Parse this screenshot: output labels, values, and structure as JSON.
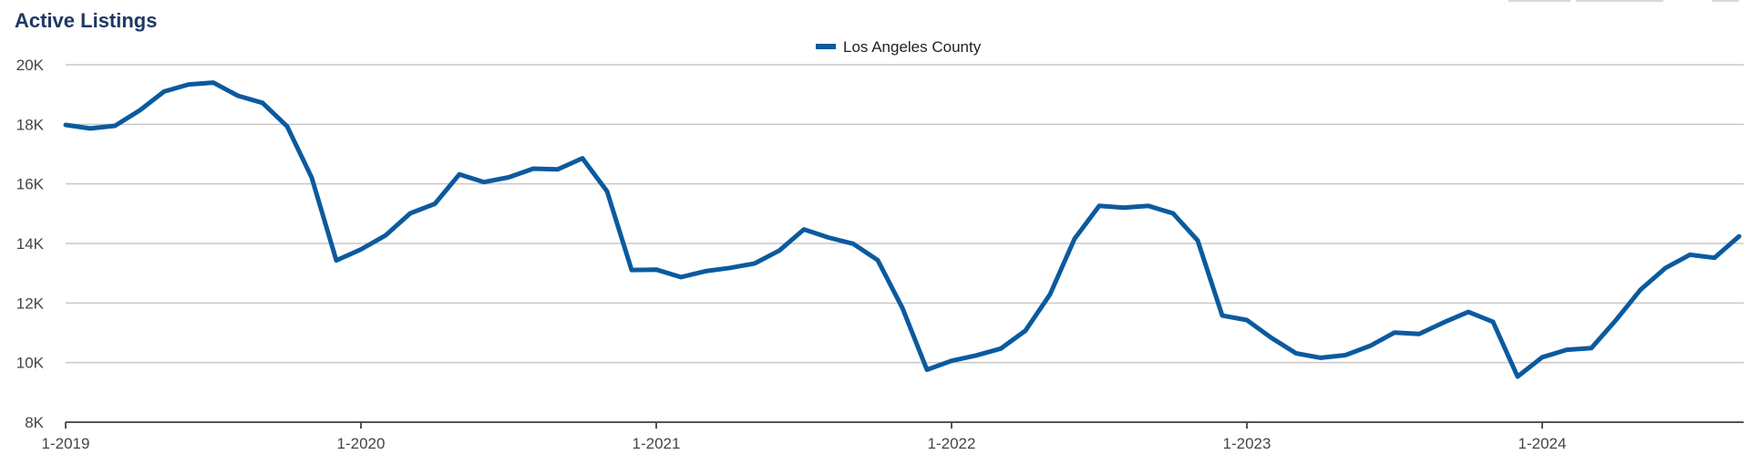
{
  "chart_data": {
    "type": "line",
    "title": "Active Listings",
    "xlabel": "",
    "ylabel": "",
    "ylim": [
      8000,
      20000
    ],
    "yticks": [
      8000,
      10000,
      12000,
      14000,
      16000,
      18000,
      20000
    ],
    "ytick_labels": [
      "8K",
      "10K",
      "12K",
      "14K",
      "16K",
      "18K",
      "20K"
    ],
    "xticks": [
      "1-2019",
      "1-2020",
      "1-2021",
      "1-2022",
      "1-2023",
      "1-2024"
    ],
    "grid": true,
    "legend_position": "top-center",
    "colors": {
      "series": "#0b5a9e",
      "grid": "#c8c8c8",
      "axis": "#555555",
      "title": "#1f3864"
    },
    "x": [
      "1-2019",
      "2-2019",
      "3-2019",
      "4-2019",
      "5-2019",
      "6-2019",
      "7-2019",
      "8-2019",
      "9-2019",
      "10-2019",
      "11-2019",
      "12-2019",
      "1-2020",
      "2-2020",
      "3-2020",
      "4-2020",
      "5-2020",
      "6-2020",
      "7-2020",
      "8-2020",
      "9-2020",
      "10-2020",
      "11-2020",
      "12-2020",
      "1-2021",
      "2-2021",
      "3-2021",
      "4-2021",
      "5-2021",
      "6-2021",
      "7-2021",
      "8-2021",
      "9-2021",
      "10-2021",
      "11-2021",
      "12-2021",
      "1-2022",
      "2-2022",
      "3-2022",
      "4-2022",
      "5-2022",
      "6-2022",
      "7-2022",
      "8-2022",
      "9-2022",
      "10-2022",
      "11-2022",
      "12-2022",
      "1-2023",
      "2-2023",
      "3-2023",
      "4-2023",
      "5-2023",
      "6-2023",
      "7-2023",
      "8-2023",
      "9-2023",
      "10-2023",
      "11-2023",
      "12-2023",
      "1-2024",
      "2-2024",
      "3-2024",
      "4-2024",
      "5-2024",
      "6-2024",
      "7-2024",
      "8-2024",
      "9-2024"
    ],
    "series": [
      {
        "name": "Los Angeles County",
        "values": [
          17980,
          17860,
          17950,
          18460,
          19100,
          19340,
          19400,
          18960,
          18720,
          17930,
          16210,
          13430,
          13800,
          14270,
          15010,
          15330,
          16320,
          16060,
          16220,
          16510,
          16490,
          16860,
          15750,
          13110,
          13120,
          12870,
          13070,
          13180,
          13330,
          13760,
          14470,
          14200,
          13990,
          13440,
          11840,
          9760,
          10060,
          10240,
          10470,
          11070,
          12290,
          14160,
          15260,
          15200,
          15260,
          15010,
          14100,
          11580,
          11430,
          10830,
          10310,
          10160,
          10250,
          10560,
          11010,
          10960,
          11350,
          11700,
          11370,
          9530,
          10180,
          10430,
          10490,
          11430,
          12450,
          13170,
          13620,
          13520,
          14240
        ]
      }
    ]
  }
}
